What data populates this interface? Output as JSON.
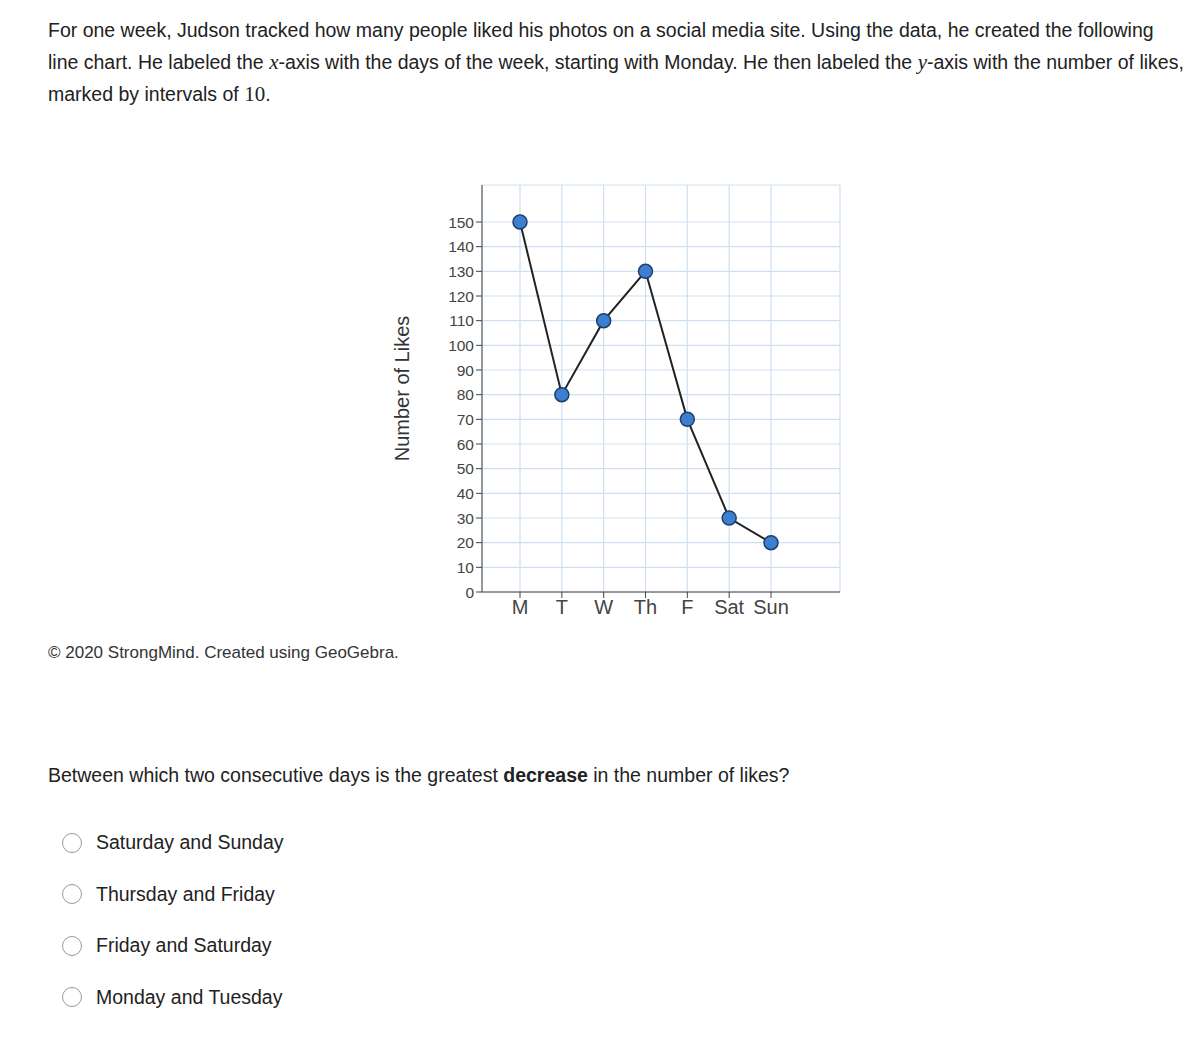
{
  "intro_parts": [
    "For one week, Judson tracked how many people liked his photos on a social media site. Using the data, he created the following line chart. He labeled the ",
    "x",
    "-axis with the days of the week, starting with Monday. He then labeled the ",
    "y",
    "-axis with the number of likes, marked by intervals of ",
    "10",
    "."
  ],
  "credit": "© 2020 StrongMind. Created using GeoGebra.",
  "question_parts": [
    "Between which two consecutive days is the greatest ",
    "decrease",
    " in the number of likes?"
  ],
  "choices": [
    "Saturday and Sunday",
    "Thursday and Friday",
    "Friday and Saturday",
    "Monday and Tuesday"
  ],
  "chart_data": {
    "type": "line",
    "y_label": "Number of Likes",
    "categories": [
      "M",
      "T",
      "W",
      "Th",
      "F",
      "Sat",
      "Sun"
    ],
    "values": [
      150,
      80,
      110,
      130,
      70,
      30,
      20
    ],
    "color": "#3c7fd1",
    "marker": "circle",
    "ylim": [
      0,
      165
    ],
    "yticks": [
      0,
      10,
      20,
      30,
      40,
      50,
      60,
      70,
      80,
      90,
      100,
      110,
      120,
      130,
      140,
      150
    ],
    "grid": true
  }
}
